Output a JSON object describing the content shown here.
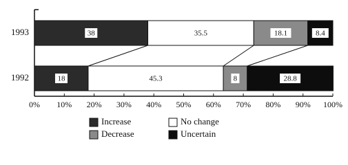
{
  "chart_data": {
    "type": "stacked-bar-horizontal",
    "categories": [
      "1993",
      "1992"
    ],
    "series": [
      {
        "name": "Increase",
        "color": "#2b2b2b",
        "values": [
          38,
          18
        ]
      },
      {
        "name": "No change",
        "color": "#ffffff",
        "values": [
          35.5,
          45.3
        ]
      },
      {
        "name": "Decrease",
        "color": "#8a8a8a",
        "values": [
          18.1,
          8
        ]
      },
      {
        "name": "Uncertain",
        "color": "#0d0d0d",
        "values": [
          8.4,
          28.8
        ]
      }
    ],
    "xlim": [
      0,
      100
    ],
    "xticks": [
      {
        "value": 0,
        "label": "0%"
      },
      {
        "value": 10,
        "label": "10%"
      },
      {
        "value": 20,
        "label": "20%"
      },
      {
        "value": 30,
        "label": "30%"
      },
      {
        "value": 40,
        "label": "40%"
      },
      {
        "value": 50,
        "label": "50%"
      },
      {
        "value": 60,
        "label": "60%"
      },
      {
        "value": 70,
        "label": "70%"
      },
      {
        "value": 80,
        "label": "80%"
      },
      {
        "value": 90,
        "label": "90%"
      },
      {
        "value": 100,
        "label": "100%"
      }
    ],
    "grid": false
  }
}
